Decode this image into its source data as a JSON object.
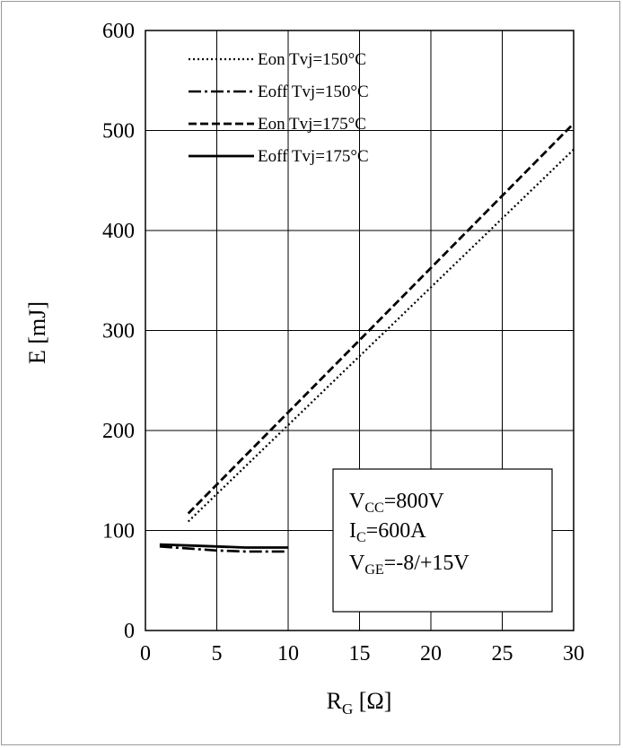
{
  "chart_data": {
    "type": "line",
    "xlabel": {
      "main": "R",
      "sub": "G",
      "unit": " [Ω]"
    },
    "ylabel": "E [mJ]",
    "xlim": [
      0,
      30
    ],
    "ylim": [
      0,
      600
    ],
    "x_ticks": [
      "0",
      "5",
      "10",
      "15",
      "20",
      "25",
      "30"
    ],
    "y_ticks": [
      "0",
      "100",
      "200",
      "300",
      "400",
      "500",
      "600"
    ],
    "grid": true,
    "legend_position": "top-left",
    "series": [
      {
        "name": "Eon Tvj=150°C",
        "style": "dotted",
        "x": [
          3,
          30
        ],
        "y": [
          109,
          481
        ]
      },
      {
        "name": "Eoff Tvj=150°C",
        "style": "dashdot",
        "x": [
          1,
          3,
          5,
          7,
          10
        ],
        "y": [
          84,
          82,
          80,
          79,
          79
        ]
      },
      {
        "name": "Eon Tvj=175°C",
        "style": "dashed",
        "x": [
          3,
          30
        ],
        "y": [
          117,
          507
        ]
      },
      {
        "name": "Eoff Tvj=175°C",
        "style": "solid",
        "x": [
          1,
          3,
          5,
          7,
          10
        ],
        "y": [
          86,
          85,
          84,
          83,
          83
        ]
      }
    ],
    "annotation": [
      {
        "main": "V",
        "sub": "CC",
        "rest": "=800V"
      },
      {
        "main": "I",
        "sub": "C",
        "rest": "=600A"
      },
      {
        "main": "V",
        "sub": "GE",
        "rest": "=-8/+15V"
      }
    ]
  }
}
